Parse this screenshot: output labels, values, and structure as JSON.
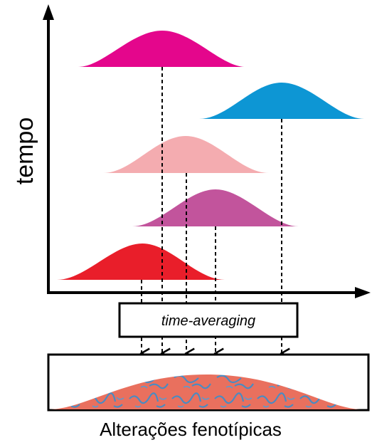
{
  "axes": {
    "y_label": "tempo"
  },
  "averaging_box": {
    "label": "time-averaging"
  },
  "result": {
    "caption": "Alterações fenotípicas"
  },
  "distributions": [
    {
      "id": "magenta",
      "color": "#e4068c"
    },
    {
      "id": "blue",
      "color": "#0d96d4"
    },
    {
      "id": "light-pink",
      "color": "#f4acb0"
    },
    {
      "id": "purple",
      "color": "#c2549c"
    },
    {
      "id": "red",
      "color": "#e91e2a"
    }
  ],
  "result_texture": {
    "base_color": "#e9705e",
    "pattern_color": "#4a8bc2"
  }
}
